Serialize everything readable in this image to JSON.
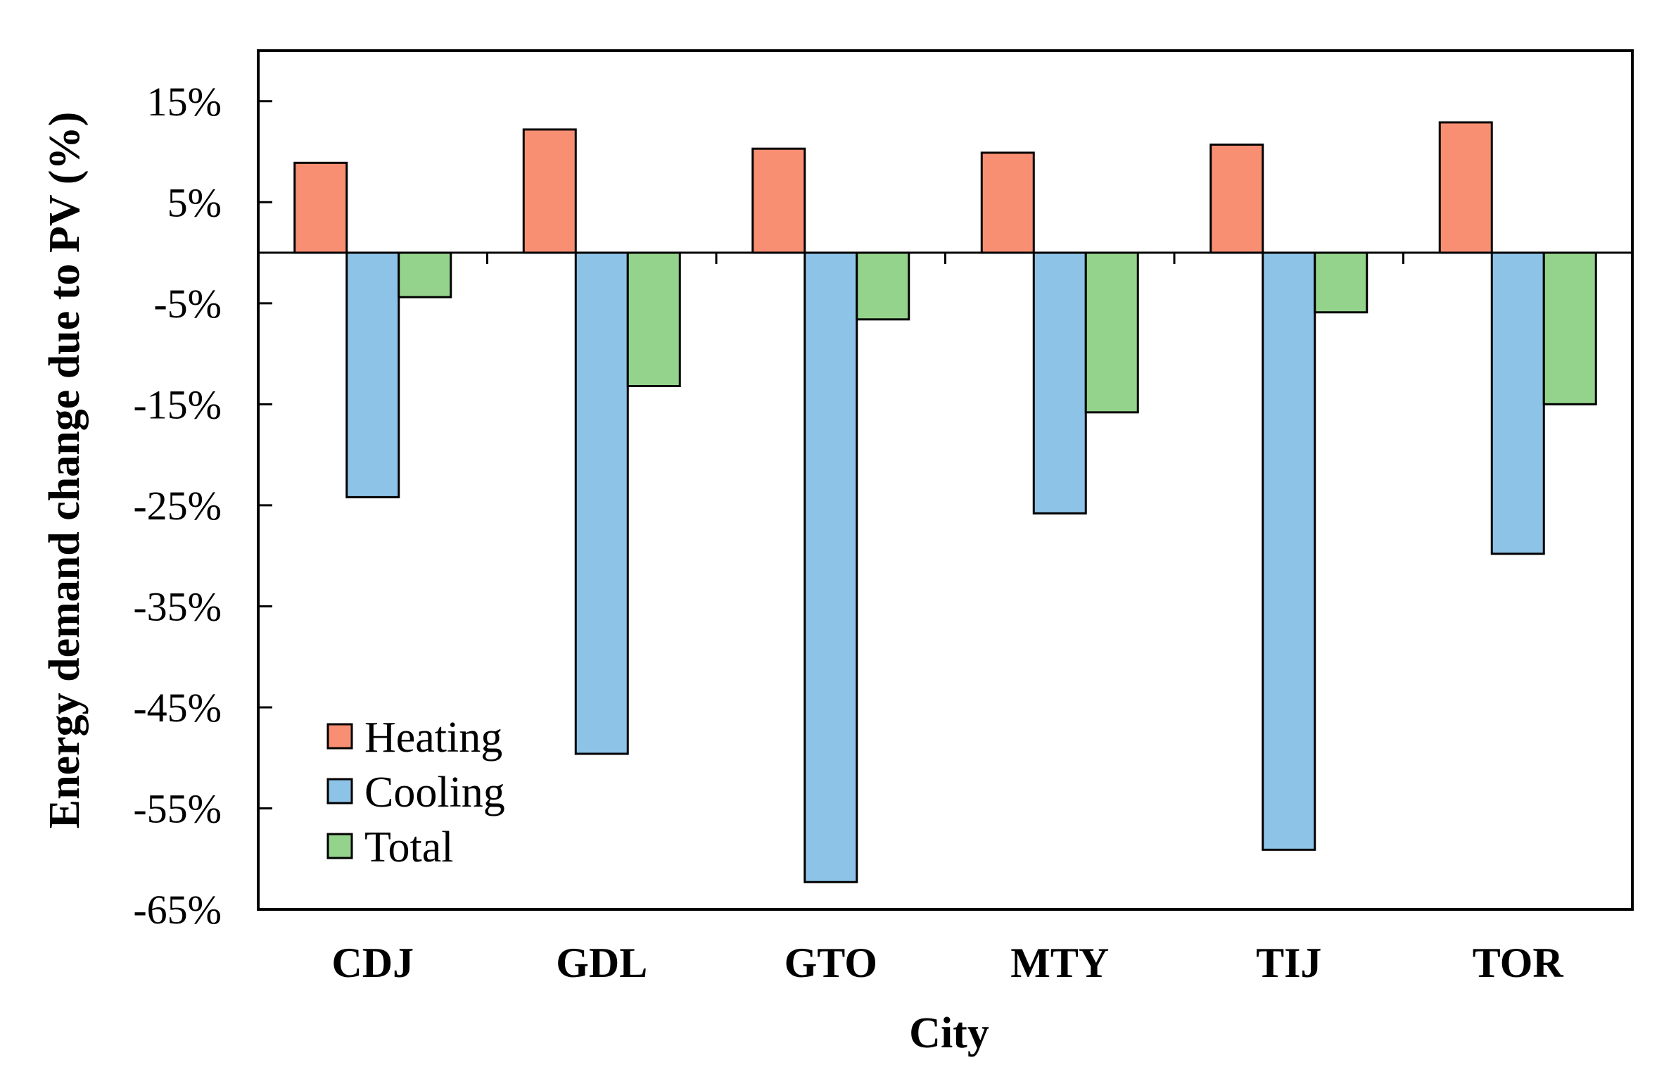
{
  "chart_data": {
    "type": "bar",
    "title": "",
    "xlabel": "City",
    "ylabel": "Energy  demand  change due  to PV (%)",
    "categories": [
      "CDJ",
      "GDL",
      "GTO",
      "MTY",
      "TIJ",
      "TOR"
    ],
    "series": [
      {
        "name": "Heating",
        "color": "#f98f72",
        "values": [
          8.9,
          12.2,
          10.3,
          9.9,
          10.7,
          12.9
        ]
      },
      {
        "name": "Cooling",
        "color": "#8ec3e8",
        "values": [
          -24.2,
          -49.6,
          -62.3,
          -25.8,
          -59.1,
          -29.8
        ]
      },
      {
        "name": "Total",
        "color": "#94d38b",
        "values": [
          -4.4,
          -13.2,
          -6.6,
          -15.8,
          -5.9,
          -15.0
        ]
      }
    ],
    "ylim": [
      -65,
      20
    ],
    "yticks": [
      15,
      5,
      -5,
      -15,
      -25,
      -35,
      -45,
      -55,
      -65
    ],
    "ytick_labels": [
      "15%",
      "5%",
      "-5%",
      "-15%",
      "-25%",
      "-35%",
      "-45%",
      "-55%",
      "-65%"
    ],
    "grid": false,
    "legend": {
      "position": "bottom-left"
    }
  }
}
